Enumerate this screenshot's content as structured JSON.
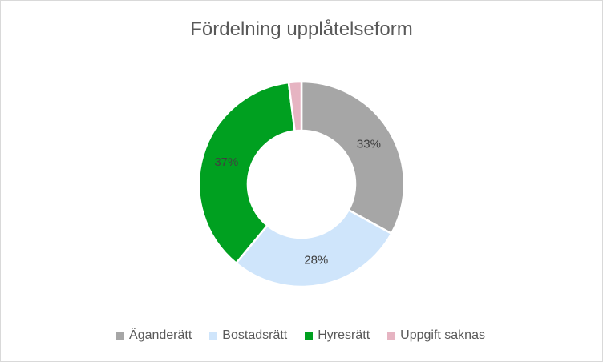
{
  "chart_data": {
    "type": "pie",
    "subtype": "doughnut",
    "title": "Fördelning upplåtelseform",
    "categories": [
      "Äganderätt",
      "Bostadsrätt",
      "Hyresrätt",
      "Uppgift saknas"
    ],
    "values": [
      33,
      28,
      37,
      2
    ],
    "data_labels": [
      "33%",
      "28%",
      "37%",
      ""
    ],
    "colors": [
      "#a6a6a6",
      "#cfe5fb",
      "#00a020",
      "#e6b4c2"
    ],
    "legend_position": "bottom"
  }
}
